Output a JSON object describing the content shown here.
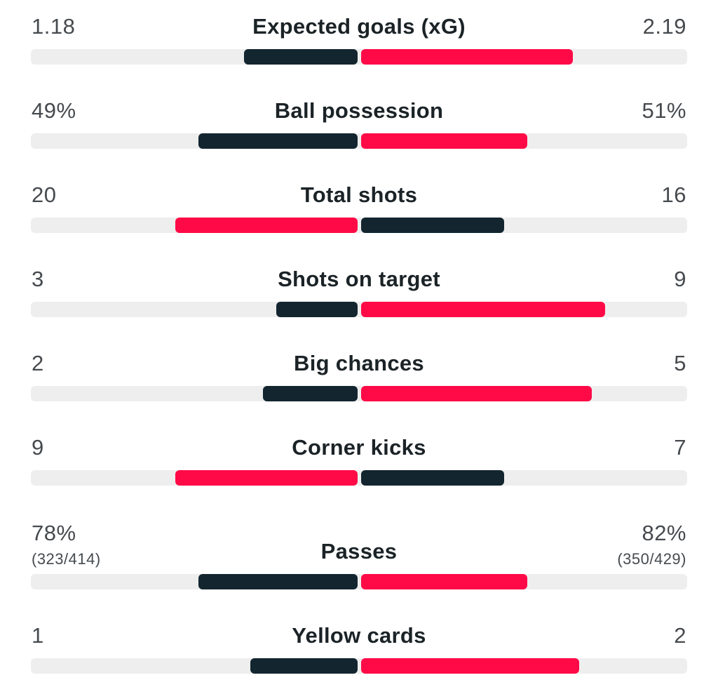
{
  "colors": {
    "leader": "#ff0a47",
    "trailer": "#13262f",
    "track": "#eeeeee",
    "value_text": "#464a4e",
    "label_text": "#1b2327"
  },
  "stats": [
    {
      "label": "Expected goals (xG)",
      "home": "1.18",
      "away": "2.19",
      "home_share": 0.35,
      "away_share": 0.65,
      "home_color": "#13262f",
      "away_color": "#ff0a47"
    },
    {
      "label": "Ball possession",
      "home": "49%",
      "away": "51%",
      "home_share": 0.49,
      "away_share": 0.51,
      "home_color": "#13262f",
      "away_color": "#ff0a47"
    },
    {
      "label": "Total shots",
      "home": "20",
      "away": "16",
      "home_share": 0.56,
      "away_share": 0.44,
      "home_color": "#ff0a47",
      "away_color": "#13262f"
    },
    {
      "label": "Shots on target",
      "home": "3",
      "away": "9",
      "home_share": 0.25,
      "away_share": 0.75,
      "home_color": "#13262f",
      "away_color": "#ff0a47"
    },
    {
      "label": "Big chances",
      "home": "2",
      "away": "5",
      "home_share": 0.29,
      "away_share": 0.71,
      "home_color": "#13262f",
      "away_color": "#ff0a47"
    },
    {
      "label": "Corner kicks",
      "home": "9",
      "away": "7",
      "home_share": 0.56,
      "away_share": 0.44,
      "home_color": "#ff0a47",
      "away_color": "#13262f"
    },
    {
      "label": "Passes",
      "home": "78%",
      "away": "82%",
      "home_sub": "(323/414)",
      "away_sub": "(350/429)",
      "home_share": 0.49,
      "away_share": 0.51,
      "home_color": "#13262f",
      "away_color": "#ff0a47"
    },
    {
      "label": "Yellow cards",
      "home": "1",
      "away": "2",
      "home_share": 0.33,
      "away_share": 0.67,
      "home_color": "#13262f",
      "away_color": "#ff0a47"
    }
  ]
}
